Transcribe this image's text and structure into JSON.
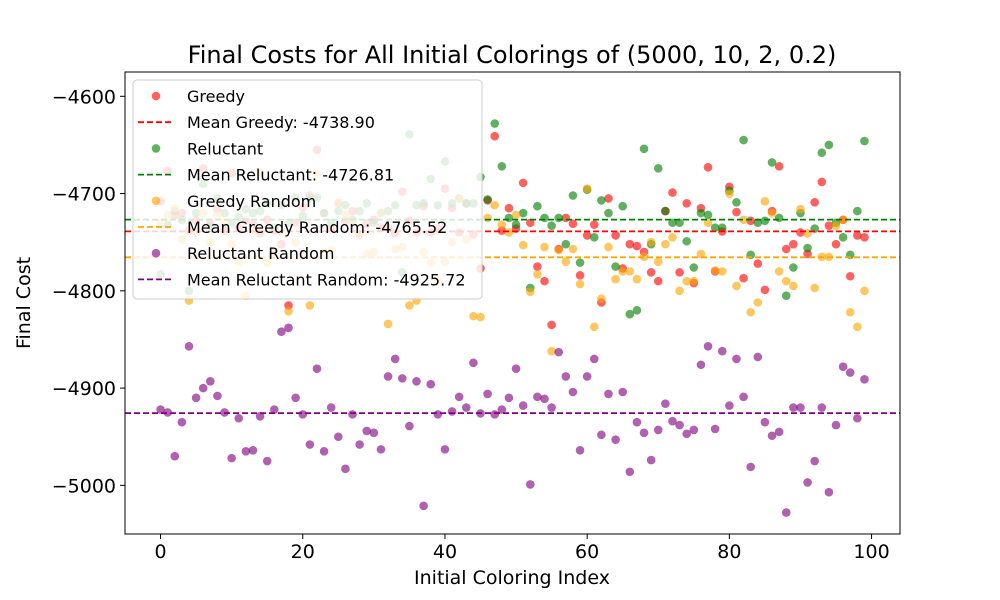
{
  "chart_data": {
    "type": "scatter",
    "title": "Final Costs for All Initial Colorings of (5000, 10, 2, 0.2)",
    "xlabel": "Initial Coloring Index",
    "ylabel": "Final Cost",
    "xlim": [
      -5,
      104
    ],
    "ylim": [
      -5050,
      -4575
    ],
    "xticks": [
      0,
      20,
      40,
      60,
      80,
      100
    ],
    "yticks": [
      -4600,
      -4700,
      -4800,
      -4900,
      -5000
    ],
    "xtick_labels": [
      "0",
      "20",
      "40",
      "60",
      "80",
      "100"
    ],
    "ytick_labels": [
      "−4600",
      "−4700",
      "−4800",
      "−4900",
      "−5000"
    ],
    "grid": false,
    "legend_position": "top-left",
    "series": [
      {
        "name": "Greedy",
        "color": "#ff0000",
        "values": [
          -4708,
          -4677,
          -4722,
          -4720,
          -4738,
          -4728,
          -4674,
          -4730,
          -4716,
          -4738,
          -4679,
          -4735,
          -4728,
          -4732,
          -4741,
          -4727,
          -4738,
          -4752,
          -4815,
          -4730,
          -4714,
          -4702,
          -4655,
          -4720,
          -4736,
          -4710,
          -4728,
          -4718,
          -4742,
          -4731,
          -4727,
          -4735,
          -4735,
          -4741,
          -4698,
          -4728,
          -4740,
          -4713,
          -4740,
          -4736,
          -4695,
          -4715,
          -4740,
          -4710,
          -4742,
          -4777,
          -4707,
          -4641,
          -4738,
          -4715,
          -4736,
          -4689,
          -4730,
          -4775,
          -4790,
          -4835,
          -4757,
          -4725,
          -4731,
          -4784,
          -4743,
          -4732,
          -4812,
          -4705,
          -4743,
          -4777,
          -4752,
          -4754,
          -4760,
          -4781,
          -4790,
          -4718,
          -4699,
          -4781,
          -4710,
          -4792,
          -4715,
          -4673,
          -4780,
          -4739,
          -4693,
          -4719,
          -4787,
          -4728,
          -4772,
          -4799,
          -4718,
          -4672,
          -4757,
          -4752,
          -4740,
          -4762,
          -4709,
          -4688,
          -4733,
          -4752,
          -4727,
          -4785,
          -4743,
          -4745
        ]
      },
      {
        "name": "Reluctant",
        "color": "#008000",
        "values": [
          -4783,
          -4732,
          -4718,
          -4727,
          -4800,
          -4720,
          -4690,
          -4733,
          -4705,
          -4720,
          -4730,
          -4724,
          -4716,
          -4720,
          -4718,
          -4710,
          -4735,
          -4712,
          -4730,
          -4704,
          -4723,
          -4705,
          -4704,
          -4720,
          -4730,
          -4718,
          -4712,
          -4727,
          -4718,
          -4710,
          -4730,
          -4720,
          -4718,
          -4712,
          -4781,
          -4639,
          -4712,
          -4710,
          -4685,
          -4712,
          -4667,
          -4710,
          -4705,
          -4710,
          -4710,
          -4683,
          -4706,
          -4628,
          -4672,
          -4725,
          -4732,
          -4720,
          -4797,
          -4713,
          -4725,
          -4733,
          -4725,
          -4752,
          -4702,
          -4771,
          -4696,
          -4745,
          -4707,
          -4720,
          -4775,
          -4713,
          -4824,
          -4820,
          -4654,
          -4752,
          -4674,
          -4718,
          -4730,
          -4730,
          -4749,
          -4776,
          -4720,
          -4722,
          -4735,
          -4735,
          -4697,
          -4709,
          -4645,
          -4763,
          -4730,
          -4728,
          -4668,
          -4725,
          -4805,
          -4776,
          -4720,
          -4756,
          -4736,
          -4658,
          -4650,
          -4730,
          -4745,
          -4763,
          -4718,
          -4646
        ]
      },
      {
        "name": "Greedy Random",
        "color": "#ffa500",
        "values": [
          -4730,
          -4722,
          -4715,
          -4747,
          -4810,
          -4740,
          -4720,
          -4750,
          -4722,
          -4730,
          -4752,
          -4770,
          -4805,
          -4738,
          -4678,
          -4771,
          -4760,
          -4740,
          -4821,
          -4750,
          -4761,
          -4815,
          -4680,
          -4760,
          -4758,
          -4710,
          -4722,
          -4730,
          -4742,
          -4762,
          -4760,
          -4720,
          -4834,
          -4757,
          -4755,
          -4815,
          -4810,
          -4760,
          -4771,
          -4790,
          -4770,
          -4750,
          -4705,
          -4747,
          -4826,
          -4827,
          -4725,
          -4712,
          -4732,
          -4740,
          -4722,
          -4753,
          -4801,
          -4783,
          -4755,
          -4862,
          -4758,
          -4770,
          -4757,
          -4793,
          -4695,
          -4837,
          -4808,
          -4755,
          -4788,
          -4780,
          -4780,
          -4788,
          -4765,
          -4750,
          -4770,
          -4752,
          -4745,
          -4800,
          -4790,
          -4790,
          -4762,
          -4730,
          -4779,
          -4780,
          -4700,
          -4795,
          -4727,
          -4822,
          -4812,
          -4708,
          -4720,
          -4780,
          -4790,
          -4795,
          -4716,
          -4741,
          -4797,
          -4765,
          -4765,
          -4733,
          -4727,
          -4822,
          -4837,
          -4800
        ]
      },
      {
        "name": "Reluctant Random",
        "color": "#800080",
        "values": [
          -4922,
          -4925,
          -4970,
          -4935,
          -4857,
          -4910,
          -4900,
          -4893,
          -4908,
          -4925,
          -4972,
          -4931,
          -4965,
          -4964,
          -4929,
          -4975,
          -4922,
          -4842,
          -4838,
          -4910,
          -4927,
          -4958,
          -4880,
          -4965,
          -4920,
          -4950,
          -4983,
          -4927,
          -4958,
          -4944,
          -4946,
          -4963,
          -4888,
          -4870,
          -4890,
          -4939,
          -4893,
          -5021,
          -4896,
          -4927,
          -4963,
          -4924,
          -4909,
          -4920,
          -4874,
          -4926,
          -4906,
          -4927,
          -4922,
          -4910,
          -4880,
          -4918,
          -4999,
          -4909,
          -4911,
          -4920,
          -4863,
          -4888,
          -4904,
          -4964,
          -4888,
          -4870,
          -4948,
          -4906,
          -4953,
          -4904,
          -4986,
          -4935,
          -4946,
          -4974,
          -4943,
          -4916,
          -4934,
          -4938,
          -4947,
          -4943,
          -4876,
          -4857,
          -4942,
          -4862,
          -4918,
          -4870,
          -4909,
          -4981,
          -4868,
          -4935,
          -4949,
          -4945,
          -5028,
          -4920,
          -4920,
          -4997,
          -4975,
          -4920,
          -5007,
          -4938,
          -4878,
          -4884,
          -4931,
          -4891
        ]
      }
    ],
    "mean_lines": [
      {
        "name": "Mean Greedy: -4738.90",
        "value": -4738.9,
        "color": "#ff0000"
      },
      {
        "name": "Mean Reluctant: -4726.81",
        "value": -4726.81,
        "color": "#008000"
      },
      {
        "name": "Mean Greedy Random: -4765.52",
        "value": -4765.52,
        "color": "#ffa500"
      },
      {
        "name": "Mean Reluctant Random: -4925.72",
        "value": -4925.72,
        "color": "#800080"
      }
    ],
    "legend_entries": [
      {
        "kind": "marker",
        "label": "Greedy",
        "color": "#ff0000"
      },
      {
        "kind": "line",
        "label": "Mean Greedy: -4738.90",
        "color": "#ff0000"
      },
      {
        "kind": "marker",
        "label": "Reluctant",
        "color": "#008000"
      },
      {
        "kind": "line",
        "label": "Mean Reluctant: -4726.81",
        "color": "#008000"
      },
      {
        "kind": "marker",
        "label": "Greedy Random",
        "color": "#ffa500"
      },
      {
        "kind": "line",
        "label": "Mean Greedy Random: -4765.52",
        "color": "#ffa500"
      },
      {
        "kind": "marker",
        "label": "Reluctant Random",
        "color": "#800080"
      },
      {
        "kind": "line",
        "label": "Mean Reluctant Random: -4925.72",
        "color": "#800080"
      }
    ]
  }
}
